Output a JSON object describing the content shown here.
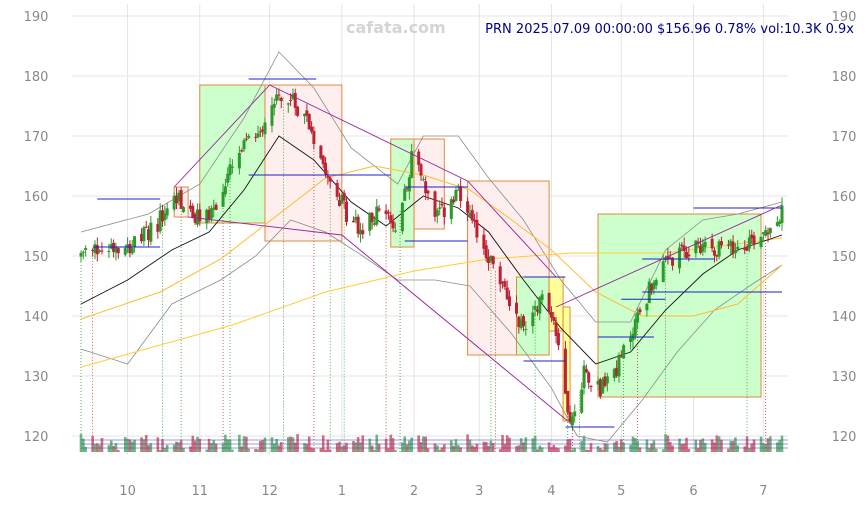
{
  "watermark": "cafata.com",
  "header": {
    "ticker": "PRN",
    "date": "2025.07.09 00:00:00",
    "price": "$156.96",
    "change": "0.78%",
    "volume": "vol:10.3K",
    "ratio": "0.9x"
  },
  "chart_data": {
    "type": "candlestick",
    "title": "",
    "xlabel": "",
    "ylabel": "",
    "ylim": [
      116.5,
      190
    ],
    "y_ticks": [
      120,
      130,
      140,
      150,
      160,
      170,
      180,
      190
    ],
    "x_tick_labels": [
      "10",
      "11",
      "12",
      "1",
      "2",
      "3",
      "4",
      "5",
      "6",
      "7"
    ],
    "x_tick_dates": [
      "2024-10-01",
      "2024-11-01",
      "2024-12-01",
      "2025-01-01",
      "2025-02-01",
      "2025-03-01",
      "2025-04-01",
      "2025-05-01",
      "2025-06-01",
      "2025-07-01"
    ],
    "x_range": [
      "2024-09-11",
      "2025-07-09"
    ],
    "grid": true,
    "price_path": [
      [
        "2024-09-11",
        150
      ],
      [
        "2024-09-25",
        152
      ],
      [
        "2024-10-05",
        152
      ],
      [
        "2024-10-15",
        156
      ],
      [
        "2024-10-22",
        160
      ],
      [
        "2024-10-30",
        156
      ],
      [
        "2024-11-08",
        158
      ],
      [
        "2024-11-14",
        164
      ],
      [
        "2024-11-20",
        168
      ],
      [
        "2024-11-28",
        172
      ],
      [
        "2024-12-04",
        177
      ],
      [
        "2024-12-09",
        176
      ],
      [
        "2024-12-16",
        174
      ],
      [
        "2024-12-24",
        166
      ],
      [
        "2025-01-03",
        157
      ],
      [
        "2025-01-10",
        154
      ],
      [
        "2025-01-17",
        158
      ],
      [
        "2025-01-24",
        154
      ],
      [
        "2025-02-01",
        168
      ],
      [
        "2025-02-10",
        156
      ],
      [
        "2025-02-20",
        160
      ],
      [
        "2025-02-26",
        155
      ],
      [
        "2025-03-05",
        150
      ],
      [
        "2025-03-12",
        144
      ],
      [
        "2025-03-20",
        138
      ],
      [
        "2025-03-27",
        143
      ],
      [
        "2025-04-02",
        140
      ],
      [
        "2025-04-07",
        127
      ],
      [
        "2025-04-10",
        122
      ],
      [
        "2025-04-15",
        131
      ],
      [
        "2025-04-22",
        128
      ],
      [
        "2025-04-30",
        132
      ],
      [
        "2025-05-08",
        140
      ],
      [
        "2025-05-16",
        147
      ],
      [
        "2025-05-26",
        150
      ],
      [
        "2025-06-04",
        152
      ],
      [
        "2025-06-16",
        151
      ],
      [
        "2025-06-27",
        153
      ],
      [
        "2025-07-09",
        157
      ]
    ],
    "sma_short": [
      [
        "2024-09-11",
        142
      ],
      [
        "2024-10-01",
        146
      ],
      [
        "2024-10-20",
        151
      ],
      [
        "2024-11-05",
        154
      ],
      [
        "2024-11-20",
        161
      ],
      [
        "2024-12-05",
        170
      ],
      [
        "2024-12-20",
        166
      ],
      [
        "2025-01-05",
        159
      ],
      [
        "2025-01-20",
        155
      ],
      [
        "2025-02-05",
        160
      ],
      [
        "2025-02-20",
        158
      ],
      [
        "2025-03-05",
        154
      ],
      [
        "2025-03-20",
        146
      ],
      [
        "2025-04-05",
        138
      ],
      [
        "2025-04-20",
        132
      ],
      [
        "2025-05-05",
        134
      ],
      [
        "2025-05-20",
        141
      ],
      [
        "2025-06-05",
        147
      ],
      [
        "2025-06-20",
        151
      ],
      [
        "2025-07-09",
        153.5
      ]
    ],
    "sma_mid": [
      [
        "2024-09-11",
        139.5
      ],
      [
        "2024-10-15",
        144
      ],
      [
        "2024-11-10",
        149.5
      ],
      [
        "2024-12-05",
        157
      ],
      [
        "2024-12-25",
        163
      ],
      [
        "2025-01-15",
        165
      ],
      [
        "2025-02-05",
        163.5
      ],
      [
        "2025-02-25",
        161
      ],
      [
        "2025-03-15",
        156
      ],
      [
        "2025-04-01",
        151
      ],
      [
        "2025-04-20",
        144
      ],
      [
        "2025-05-10",
        140
      ],
      [
        "2025-06-01",
        140
      ],
      [
        "2025-06-20",
        142
      ],
      [
        "2025-07-09",
        148.5
      ]
    ],
    "sma_long": [
      [
        "2024-09-11",
        131.5
      ],
      [
        "2024-11-15",
        138.5
      ],
      [
        "2024-12-25",
        144
      ],
      [
        "2025-02-01",
        147.5
      ],
      [
        "2025-03-05",
        149.5
      ],
      [
        "2025-04-10",
        150.5
      ],
      [
        "2025-05-20",
        150.5
      ],
      [
        "2025-07-09",
        153
      ]
    ],
    "band_upper": [
      [
        "2024-09-11",
        154
      ],
      [
        "2024-10-10",
        157
      ],
      [
        "2024-11-01",
        162
      ],
      [
        "2024-11-20",
        173
      ],
      [
        "2024-12-05",
        184
      ],
      [
        "2024-12-20",
        178
      ],
      [
        "2025-01-05",
        168
      ],
      [
        "2025-01-25",
        162
      ],
      [
        "2025-02-05",
        170
      ],
      [
        "2025-02-20",
        170
      ],
      [
        "2025-03-05",
        163
      ],
      [
        "2025-03-20",
        156
      ],
      [
        "2025-04-05",
        146
      ],
      [
        "2025-04-20",
        139
      ],
      [
        "2025-05-05",
        139
      ],
      [
        "2025-05-20",
        151
      ],
      [
        "2025-06-05",
        156
      ],
      [
        "2025-06-20",
        157
      ],
      [
        "2025-07-09",
        159
      ]
    ],
    "band_lower": [
      [
        "2024-09-11",
        134.5
      ],
      [
        "2024-10-01",
        132
      ],
      [
        "2024-10-20",
        142
      ],
      [
        "2024-11-10",
        146
      ],
      [
        "2024-11-25",
        150
      ],
      [
        "2024-12-10",
        156
      ],
      [
        "2024-12-25",
        154
      ],
      [
        "2025-01-10",
        150
      ],
      [
        "2025-01-25",
        146
      ],
      [
        "2025-02-10",
        146
      ],
      [
        "2025-02-25",
        145
      ],
      [
        "2025-03-15",
        137
      ],
      [
        "2025-04-01",
        128
      ],
      [
        "2025-04-12",
        120
      ],
      [
        "2025-04-25",
        119
      ],
      [
        "2025-05-10",
        126
      ],
      [
        "2025-05-25",
        134
      ],
      [
        "2025-06-10",
        141
      ],
      [
        "2025-06-25",
        145
      ],
      [
        "2025-07-09",
        148.5
      ]
    ],
    "zones": [
      {
        "start": "2024-10-21",
        "end": "2024-10-27",
        "top": 161.5,
        "bottom": 156.5,
        "kind": "down"
      },
      {
        "start": "2024-11-01",
        "end": "2024-11-29",
        "top": 178.5,
        "bottom": 155.5,
        "kind": "up"
      },
      {
        "start": "2024-11-29",
        "end": "2025-01-01",
        "top": 178.5,
        "bottom": 152.5,
        "kind": "down"
      },
      {
        "start": "2025-01-22",
        "end": "2025-02-01",
        "top": 169.5,
        "bottom": 151.5,
        "kind": "up"
      },
      {
        "start": "2025-02-01",
        "end": "2025-02-14",
        "top": 169.5,
        "bottom": 154.5,
        "kind": "down"
      },
      {
        "start": "2025-02-24",
        "end": "2025-03-31",
        "top": 162.5,
        "bottom": 133.5,
        "kind": "down"
      },
      {
        "start": "2025-03-17",
        "end": "2025-03-31",
        "top": 146.5,
        "bottom": 133.5,
        "kind": "up"
      },
      {
        "start": "2025-03-31",
        "end": "2025-04-06",
        "top": 146.5,
        "bottom": 137.5,
        "kind": "yellow"
      },
      {
        "start": "2025-04-06",
        "end": "2025-04-09",
        "top": 141.5,
        "bottom": 122.5,
        "kind": "yellow"
      },
      {
        "start": "2025-04-21",
        "end": "2025-06-30",
        "top": 157,
        "bottom": 126.5,
        "kind": "up"
      }
    ],
    "level_lines": [
      {
        "start": "2024-09-18",
        "end": "2024-10-15",
        "value": 159.5
      },
      {
        "start": "2024-09-16",
        "end": "2024-10-15",
        "value": 151.5
      },
      {
        "start": "2024-11-22",
        "end": "2024-12-21",
        "value": 179.5
      },
      {
        "start": "2024-11-22",
        "end": "2025-01-22",
        "value": 163.5
      },
      {
        "start": "2025-01-28",
        "end": "2025-02-24",
        "value": 161.5
      },
      {
        "start": "2025-01-28",
        "end": "2025-02-24",
        "value": 152.5
      },
      {
        "start": "2025-03-20",
        "end": "2025-04-07",
        "value": 146.5
      },
      {
        "start": "2025-03-20",
        "end": "2025-04-07",
        "value": 132.5
      },
      {
        "start": "2025-04-07",
        "end": "2025-04-28",
        "value": 121.5
      },
      {
        "start": "2025-04-21",
        "end": "2025-05-15",
        "value": 136.5
      },
      {
        "start": "2025-05-01",
        "end": "2025-05-20",
        "value": 142.8
      },
      {
        "start": "2025-05-10",
        "end": "2025-06-10",
        "value": 149.5
      },
      {
        "start": "2025-05-10",
        "end": "2025-07-09",
        "value": 144.0
      },
      {
        "start": "2025-06-01",
        "end": "2025-07-09",
        "value": 158.0
      }
    ],
    "trend_lines": [
      [
        [
          "2024-10-21",
          161.5
        ],
        [
          "2024-12-01",
          178.5
        ]
      ],
      [
        [
          "2024-12-01",
          178.5
        ],
        [
          "2025-02-24",
          162.5
        ]
      ],
      [
        [
          "2025-02-24",
          162.5
        ],
        [
          "2025-04-03",
          146.5
        ]
      ],
      [
        [
          "2024-10-27",
          156.5
        ],
        [
          "2025-01-01",
          153.5
        ]
      ],
      [
        [
          "2025-01-01",
          153.5
        ],
        [
          "2025-04-08",
          122.5
        ]
      ],
      [
        [
          "2025-04-03",
          141.5
        ],
        [
          "2025-07-09",
          158.5
        ]
      ]
    ]
  }
}
